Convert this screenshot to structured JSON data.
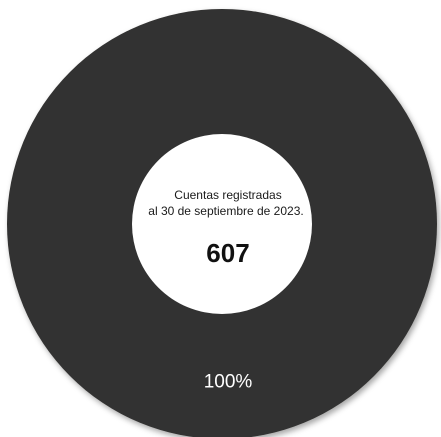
{
  "chart_data": {
    "type": "pie",
    "donut": true,
    "center_text": {
      "line1": "Cuentas registradas",
      "line2": "al 30 de septiembre de 2023.",
      "value": "607"
    },
    "slices": [
      {
        "value": 607,
        "percent_label": "100%",
        "color": "#333230"
      }
    ]
  }
}
